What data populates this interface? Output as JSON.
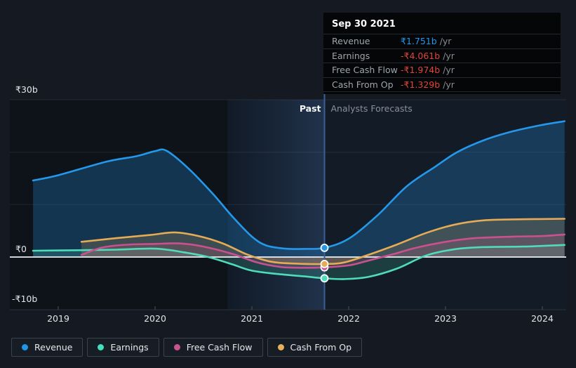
{
  "tooltip": {
    "title": "Sep 30 2021",
    "rows": [
      {
        "label": "Revenue",
        "value": "₹1.751b",
        "unit": "/yr",
        "value_color": "#2097e8"
      },
      {
        "label": "Earnings",
        "value": "-₹4.061b",
        "unit": "/yr",
        "value_color": "#e0453c"
      },
      {
        "label": "Free Cash Flow",
        "value": "-₹1.974b",
        "unit": "/yr",
        "value_color": "#e0453c"
      },
      {
        "label": "Cash From Op",
        "value": "-₹1.329b",
        "unit": "/yr",
        "value_color": "#e0453c"
      }
    ]
  },
  "legend": {
    "items": [
      {
        "label": "Revenue",
        "color": "#2196e8"
      },
      {
        "label": "Earnings",
        "color": "#41dfc0"
      },
      {
        "label": "Free Cash Flow",
        "color": "#c9538f"
      },
      {
        "label": "Cash From Op",
        "color": "#e8b05c"
      }
    ]
  },
  "chart_data": {
    "type": "area",
    "title": "",
    "xlabel": "",
    "ylabel": "",
    "currency": "₹",
    "y_tick_labels": [
      "₹30b",
      "₹0",
      "-₹10b"
    ],
    "y_tick_values": [
      30,
      0,
      -10
    ],
    "gridline_values": [
      30,
      20,
      10
    ],
    "x_tick_labels": [
      "2019",
      "2020",
      "2021",
      "2022",
      "2023",
      "2024"
    ],
    "x_tick_values": [
      2019,
      2020,
      2021,
      2022,
      2023,
      2024
    ],
    "xlim": [
      2018.5,
      2024.35
    ],
    "ylim": [
      -10,
      30
    ],
    "annotations": {
      "past": "Past",
      "forecast": "Analysts Forecasts"
    },
    "divider_x": 2021.75,
    "divider_date": "Sep 30 2021",
    "past_window_start": 2020.75,
    "series": [
      {
        "name": "Revenue",
        "color": "#2498ea",
        "fill_opacity": 0.26,
        "x": [
          2018.74,
          2019.0,
          2019.5,
          2019.8,
          2020.0,
          2020.12,
          2020.35,
          2020.6,
          2020.8,
          2021.0,
          2021.15,
          2021.35,
          2021.55,
          2021.75,
          2022.0,
          2022.3,
          2022.6,
          2022.9,
          2023.12,
          2023.4,
          2023.7,
          2024.0,
          2024.23
        ],
        "values": [
          14.6,
          15.6,
          18.2,
          19.2,
          20.2,
          20.25,
          16.8,
          12.0,
          7.7,
          3.9,
          2.2,
          1.6,
          1.55,
          1.751,
          3.5,
          8.0,
          13.5,
          17.3,
          20.0,
          22.3,
          24.0,
          25.2,
          25.9
        ]
      },
      {
        "name": "Earnings",
        "color": "#4fdcba",
        "fill_opacity": 0.18,
        "x": [
          2018.74,
          2019.2,
          2019.6,
          2020.0,
          2020.3,
          2020.55,
          2020.8,
          2021.0,
          2021.3,
          2021.55,
          2021.75,
          2021.95,
          2022.2,
          2022.5,
          2022.8,
          2023.1,
          2023.4,
          2023.8,
          2024.23
        ],
        "values": [
          1.2,
          1.3,
          1.4,
          1.6,
          0.9,
          0.0,
          -1.4,
          -2.6,
          -3.3,
          -3.7,
          -4.061,
          -4.2,
          -3.8,
          -2.2,
          0.3,
          1.5,
          1.9,
          2.0,
          2.3
        ]
      },
      {
        "name": "Free Cash Flow",
        "color": "#ca5190",
        "fill_opacity": 0.2,
        "x": [
          2019.24,
          2019.45,
          2019.7,
          2020.0,
          2020.25,
          2020.5,
          2020.8,
          2021.05,
          2021.3,
          2021.55,
          2021.75,
          2022.0,
          2022.2,
          2022.45,
          2022.7,
          2023.0,
          2023.3,
          2023.7,
          2024.0,
          2024.23
        ],
        "values": [
          0.4,
          1.8,
          2.35,
          2.5,
          2.6,
          2.0,
          0.6,
          -1.0,
          -1.9,
          -2.05,
          -1.974,
          -1.6,
          -0.7,
          0.5,
          1.8,
          2.9,
          3.6,
          3.9,
          4.0,
          4.3
        ]
      },
      {
        "name": "Cash From Op",
        "color": "#e5ab55",
        "fill_opacity": 0.2,
        "x": [
          2019.24,
          2019.6,
          2019.95,
          2020.2,
          2020.45,
          2020.7,
          2020.95,
          2021.2,
          2021.45,
          2021.75,
          2021.95,
          2022.2,
          2022.5,
          2022.8,
          2023.1,
          2023.4,
          2023.8,
          2024.23
        ],
        "values": [
          2.9,
          3.6,
          4.2,
          4.7,
          4.0,
          2.6,
          0.5,
          -0.9,
          -1.25,
          -1.329,
          -1.05,
          0.4,
          2.4,
          4.6,
          6.2,
          7.0,
          7.2,
          7.3
        ]
      }
    ],
    "markers": [
      {
        "series": "Revenue",
        "x": 2021.75,
        "value": 1.751
      },
      {
        "series": "Earnings",
        "x": 2021.75,
        "value": -4.061
      },
      {
        "series": "Free Cash Flow",
        "x": 2021.75,
        "value": -1.974
      },
      {
        "series": "Cash From Op",
        "x": 2021.75,
        "value": -1.329
      }
    ]
  }
}
